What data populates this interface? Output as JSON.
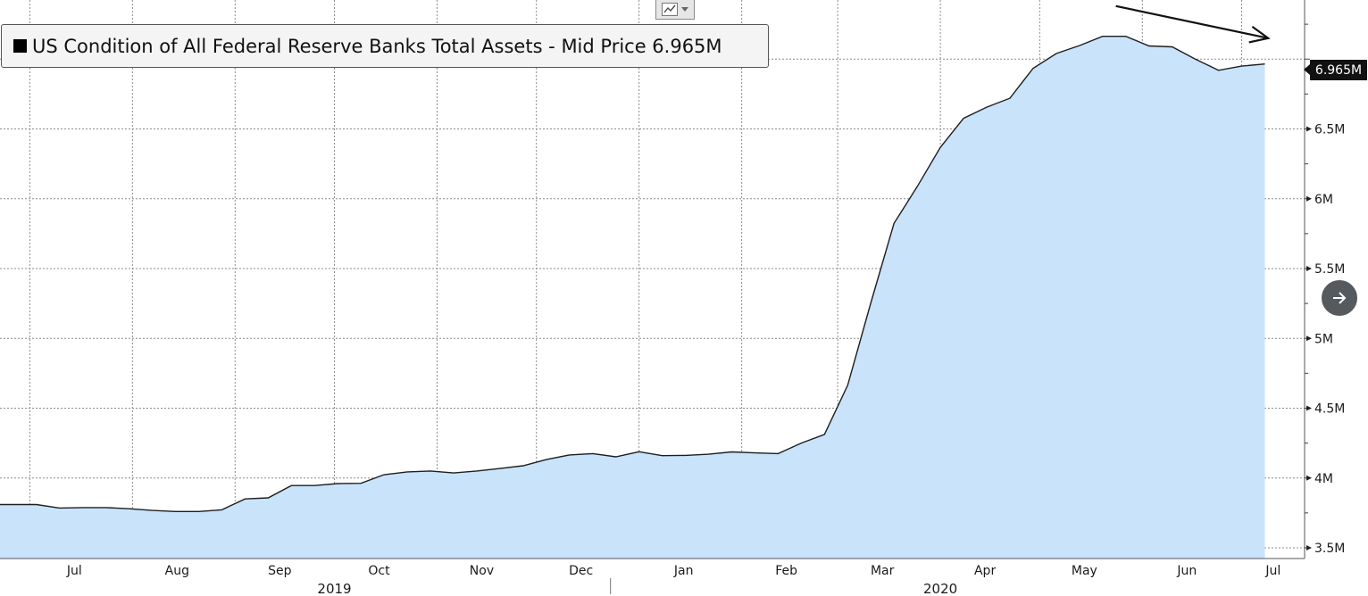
{
  "legend": {
    "label": "US Condition of All Federal Reserve Banks Total Assets - Mid Price 6.965M",
    "swatch_color": "#000000"
  },
  "last_value_label": "6.965M",
  "toolbar": {
    "chart_tool_icon": "line-chart-icon",
    "dropdown_icon": "chevron-down-icon"
  },
  "nav": {
    "next_icon": "arrow-right-icon"
  },
  "colors": {
    "fill": "#c9e3fb",
    "line": "#1e1e1e",
    "grid": "#8c8c8c"
  },
  "chart_data": {
    "type": "area",
    "title": "US Condition of All Federal Reserve Banks Total Assets - Mid Price",
    "series": [
      {
        "name": "US Condition of All Federal Reserve Banks Total Assets",
        "values": [
          [
            "2019-07-03",
            3.81
          ],
          [
            "2019-07-10",
            3.785
          ],
          [
            "2019-07-17",
            3.788
          ],
          [
            "2019-07-24",
            3.788
          ],
          [
            "2019-07-31",
            3.78
          ],
          [
            "2019-08-07",
            3.768
          ],
          [
            "2019-08-14",
            3.76
          ],
          [
            "2019-08-21",
            3.76
          ],
          [
            "2019-08-28",
            3.772
          ],
          [
            "2019-09-04",
            3.85
          ],
          [
            "2019-09-11",
            3.858
          ],
          [
            "2019-09-18",
            3.946
          ],
          [
            "2019-09-25",
            3.946
          ],
          [
            "2019-10-02",
            3.96
          ],
          [
            "2019-10-09",
            3.962
          ],
          [
            "2019-10-16",
            4.024
          ],
          [
            "2019-10-23",
            4.044
          ],
          [
            "2019-10-30",
            4.05
          ],
          [
            "2019-11-06",
            4.036
          ],
          [
            "2019-11-13",
            4.05
          ],
          [
            "2019-11-20",
            4.068
          ],
          [
            "2019-11-27",
            4.088
          ],
          [
            "2019-12-04",
            4.132
          ],
          [
            "2019-12-11",
            4.165
          ],
          [
            "2019-12-18",
            4.175
          ],
          [
            "2019-12-25",
            4.152
          ],
          [
            "2020-01-01",
            4.188
          ],
          [
            "2020-01-08",
            4.16
          ],
          [
            "2020-01-15",
            4.162
          ],
          [
            "2020-01-22",
            4.17
          ],
          [
            "2020-01-29",
            4.187
          ],
          [
            "2020-02-05",
            4.18
          ],
          [
            "2020-02-12",
            4.175
          ],
          [
            "2020-02-19",
            4.25
          ],
          [
            "2020-02-26",
            4.312
          ],
          [
            "2020-03-04",
            4.664
          ],
          [
            "2020-03-11",
            5.254
          ],
          [
            "2020-03-18",
            5.824
          ],
          [
            "2020-03-25",
            6.086
          ],
          [
            "2020-04-01",
            6.368
          ],
          [
            "2020-04-08",
            6.576
          ],
          [
            "2020-04-15",
            6.656
          ],
          [
            "2020-04-22",
            6.72
          ],
          [
            "2020-04-29",
            6.934
          ],
          [
            "2020-05-06",
            7.04
          ],
          [
            "2020-05-13",
            7.097
          ],
          [
            "2020-05-20",
            7.163
          ],
          [
            "2020-05-27",
            7.163
          ],
          [
            "2020-06-03",
            7.094
          ],
          [
            "2020-06-10",
            7.088
          ],
          [
            "2020-06-17",
            7.0
          ],
          [
            "2020-06-24",
            6.92
          ],
          [
            "2020-07-01",
            6.95
          ],
          [
            "2020-07-08",
            6.965
          ]
        ]
      }
    ],
    "x_tick_labels": [
      {
        "date": "2019-07-01",
        "label": "Jul"
      },
      {
        "date": "2019-08-01",
        "label": "Aug"
      },
      {
        "date": "2019-09-01",
        "label": "Sep"
      },
      {
        "date": "2019-10-01",
        "label": "Oct"
      },
      {
        "date": "2019-11-01",
        "label": "Nov"
      },
      {
        "date": "2019-12-01",
        "label": "Dec"
      },
      {
        "date": "2020-01-01",
        "label": "Jan"
      },
      {
        "date": "2020-02-01",
        "label": "Feb"
      },
      {
        "date": "2020-03-01",
        "label": "Mar"
      },
      {
        "date": "2020-04-01",
        "label": "Apr"
      },
      {
        "date": "2020-05-01",
        "label": "May"
      },
      {
        "date": "2020-06-01",
        "label": "Jun"
      },
      {
        "date": "2020-07-01",
        "label": "Jul"
      }
    ],
    "year_labels": [
      {
        "date": "2019-10-01",
        "label": "2019"
      },
      {
        "date": "2020-04-01",
        "label": "2020"
      }
    ],
    "y_tick_labels": [
      {
        "value": 3.5,
        "label": "3.5M"
      },
      {
        "value": 4.0,
        "label": "4M"
      },
      {
        "value": 4.5,
        "label": "4.5M"
      },
      {
        "value": 5.0,
        "label": "5M"
      },
      {
        "value": 5.5,
        "label": "5.5M"
      },
      {
        "value": 6.0,
        "label": "6M"
      },
      {
        "value": 6.5,
        "label": "6.5M"
      }
    ],
    "y_unit": "millions",
    "xlim": [
      "2019-06-22",
      "2020-07-20"
    ],
    "ylim": [
      3.5,
      7.5
    ],
    "grid": true,
    "legend_position": "top-left",
    "annotations": [
      {
        "type": "arrow",
        "from": [
          "2020-05-24",
          7.38
        ],
        "to": [
          "2020-07-09",
          7.15
        ]
      }
    ]
  }
}
